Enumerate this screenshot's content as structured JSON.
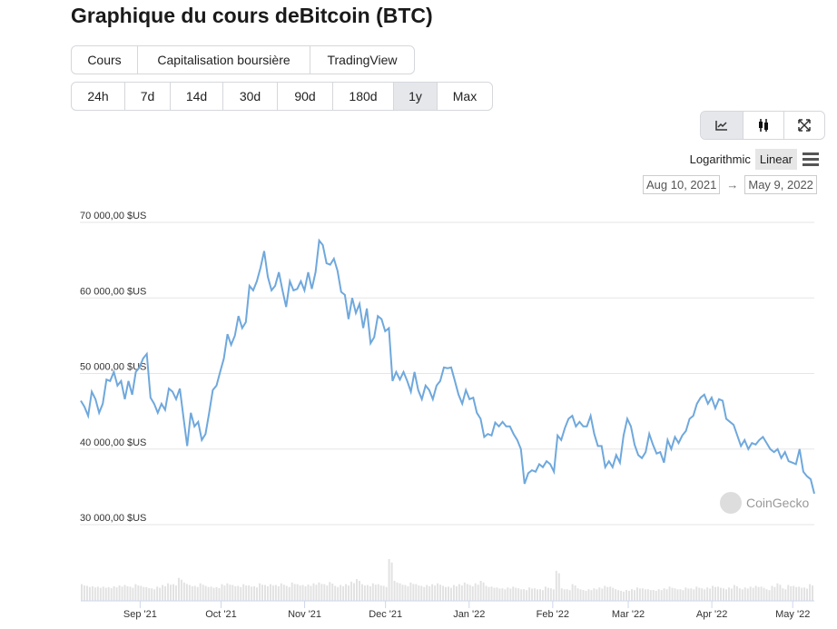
{
  "title": "Graphique du cours deBitcoin (BTC)",
  "view_tabs": [
    {
      "label": "Cours",
      "active": true
    },
    {
      "label": "Capitalisation boursière",
      "active": false
    },
    {
      "label": "TradingView",
      "active": false
    }
  ],
  "range_tabs": [
    {
      "label": "24h"
    },
    {
      "label": "7d"
    },
    {
      "label": "14d"
    },
    {
      "label": "30d"
    },
    {
      "label": "90d"
    },
    {
      "label": "180d"
    },
    {
      "label": "1y",
      "active": true
    },
    {
      "label": "Max"
    }
  ],
  "chart_type_buttons": [
    {
      "icon": "line-chart-icon",
      "active": true
    },
    {
      "icon": "candlestick-icon"
    },
    {
      "icon": "fullscreen-icon"
    }
  ],
  "scale": {
    "log_label": "Logarithmic",
    "linear_label": "Linear",
    "active": "Linear"
  },
  "date_range": {
    "from": "Aug 10, 2021",
    "arrow": "→",
    "to": "May 9, 2022"
  },
  "watermark": "CoinGecko",
  "chart_data": {
    "type": "line",
    "title": "",
    "line_color": "#6fa8dc",
    "ylim": [
      30000,
      70000
    ],
    "y_ticks": [
      {
        "value": 70000,
        "label": "70 000,00 $US"
      },
      {
        "value": 60000,
        "label": "60 000,00 $US"
      },
      {
        "value": 50000,
        "label": "50 000,00 $US"
      },
      {
        "value": 40000,
        "label": "40 000,00 $US"
      },
      {
        "value": 30000,
        "label": "30 000,00 $US"
      }
    ],
    "x_ticks": [
      {
        "label": "Sep '21",
        "date": "2021-09-01"
      },
      {
        "label": "Oct '21",
        "date": "2021-10-01"
      },
      {
        "label": "Nov '21",
        "date": "2021-11-01"
      },
      {
        "label": "Dec '21",
        "date": "2021-12-01"
      },
      {
        "label": "Jan '22",
        "date": "2022-01-01"
      },
      {
        "label": "Feb '22",
        "date": "2022-02-01"
      },
      {
        "label": "Mar '22",
        "date": "2022-03-01"
      },
      {
        "label": "Apr '22",
        "date": "2022-04-01"
      },
      {
        "label": "May '22",
        "date": "2022-05-01"
      }
    ],
    "x_range": [
      "2021-08-10",
      "2022-05-09"
    ],
    "grid": true,
    "series": [
      {
        "values": [
          46400,
          45600,
          44400,
          47600,
          46600,
          44800,
          46000,
          49200,
          49000,
          50200,
          48400,
          49000,
          46600,
          49000,
          47200,
          50200,
          50800,
          52000,
          52600,
          46800,
          46000,
          44800,
          46000,
          45200,
          48000,
          47600,
          46600,
          48000,
          44200,
          40400,
          44800,
          43000,
          43600,
          41200,
          42000,
          44800,
          47800,
          48400,
          50200,
          52000,
          55200,
          53800,
          55000,
          57600,
          56000,
          56800,
          61600,
          61000,
          62200,
          64000,
          66200,
          62800,
          61000,
          61600,
          63400,
          61000,
          58800,
          62200,
          61000,
          61200,
          62200,
          61000,
          63400,
          61200,
          63400,
          67600,
          67000,
          64600,
          64400,
          65200,
          63600,
          60800,
          60400,
          57200,
          60000,
          58000,
          59200,
          56000,
          58600,
          54000,
          54800,
          57600,
          57200,
          55600,
          56000,
          49000,
          50200,
          49200,
          50200,
          49000,
          47600,
          50200,
          47800,
          46600,
          48400,
          47800,
          46600,
          48400,
          49000,
          50800,
          50700,
          50800,
          49000,
          47200,
          46000,
          47800,
          46600,
          46800,
          44800,
          44000,
          41600,
          42000,
          41800,
          43500,
          43000,
          43600,
          43000,
          43000,
          42000,
          41200,
          40000,
          35400,
          36800,
          37200,
          37000,
          38000,
          37600,
          38400,
          38000,
          37000,
          41800,
          41200,
          42800,
          44000,
          44400,
          43000,
          43600,
          43000,
          43000,
          44400,
          42000,
          40400,
          40400,
          37600,
          38400,
          37600,
          39200,
          38200,
          41800,
          44000,
          43000,
          40600,
          39200,
          38800,
          39600,
          42000,
          40600,
          39400,
          39600,
          38200,
          41200,
          40000,
          41600,
          40800,
          41800,
          42400,
          44000,
          44400,
          46000,
          46800,
          47200,
          46000,
          46800,
          45400,
          46600,
          46400,
          44000,
          43600,
          43200,
          41800,
          40400,
          41200,
          40000,
          40800,
          40600,
          41200,
          41600,
          40800,
          40000,
          39600,
          40000,
          38800,
          39600,
          38400,
          38200,
          38000,
          40000,
          37000,
          36400,
          36000,
          34100
        ]
      }
    ],
    "volume_relative": [
      40,
      36,
      35,
      34,
      34,
      33,
      35,
      37,
      38,
      34,
      40,
      36,
      33,
      30,
      34,
      38,
      42,
      40,
      55,
      44,
      38,
      36,
      42,
      36,
      34,
      33,
      40,
      42,
      38,
      36,
      40,
      37,
      35,
      42,
      38,
      40,
      38,
      42,
      36,
      44,
      40,
      38,
      39,
      42,
      44,
      40,
      45,
      36,
      38,
      40,
      46,
      52,
      40,
      38,
      42,
      40,
      36,
      100,
      48,
      42,
      38,
      44,
      40,
      36,
      38,
      40,
      42,
      36,
      34,
      38,
      40,
      44,
      38,
      42,
      48,
      36,
      34,
      32,
      30,
      32,
      34,
      30,
      28,
      32,
      30,
      28,
      34,
      30,
      72,
      30,
      28,
      40,
      30,
      26,
      28,
      30,
      32,
      36,
      34,
      28,
      24,
      26,
      28,
      32,
      30,
      28,
      26,
      28,
      30,
      34,
      30,
      28,
      32,
      30,
      34,
      30,
      32,
      36,
      34,
      30,
      32,
      38,
      30,
      32,
      34,
      36,
      34,
      28,
      36,
      42,
      30,
      38,
      36,
      34,
      32,
      40
    ]
  }
}
